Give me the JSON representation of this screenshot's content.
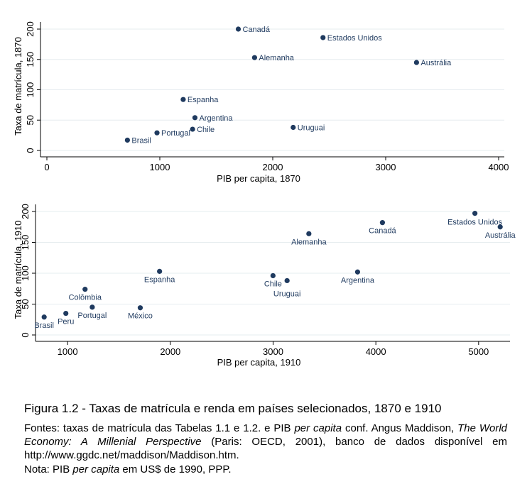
{
  "colors": {
    "marker": "#1f3a5f",
    "grid": "#e6ecef"
  },
  "chart_data": [
    {
      "type": "scatter",
      "xlabel": "PIB per capita, 1870",
      "ylabel": "Taxa de matrícula, 1870",
      "xlim": [
        0,
        4000
      ],
      "ylim": [
        0,
        200
      ],
      "xticks": [
        0,
        1000,
        2000,
        3000,
        4000
      ],
      "yticks": [
        0,
        50,
        100,
        150,
        200
      ],
      "grid": true,
      "points": [
        {
          "label": "Canadá",
          "x": 1695,
          "y": 200
        },
        {
          "label": "Estados Unidos",
          "x": 2445,
          "y": 186
        },
        {
          "label": "Alemanha",
          "x": 1839,
          "y": 153
        },
        {
          "label": "Austrália",
          "x": 3273,
          "y": 145
        },
        {
          "label": "Espanha",
          "x": 1207,
          "y": 84
        },
        {
          "label": "Argentina",
          "x": 1311,
          "y": 54
        },
        {
          "label": "Uruguai",
          "x": 2181,
          "y": 38
        },
        {
          "label": "Chile",
          "x": 1290,
          "y": 35
        },
        {
          "label": "Portugal",
          "x": 975,
          "y": 29
        },
        {
          "label": "Brasil",
          "x": 713,
          "y": 17
        }
      ]
    },
    {
      "type": "scatter",
      "xlabel": "PIB per capita, 1910",
      "ylabel": "Taxa de matrícula, 1910",
      "xlim": [
        750,
        5250
      ],
      "ylim": [
        0,
        200
      ],
      "xticks": [
        1000,
        2000,
        3000,
        4000,
        5000
      ],
      "yticks": [
        0,
        50,
        100,
        150,
        200
      ],
      "grid": true,
      "points": [
        {
          "label": "Estados Unidos",
          "x": 4964,
          "y": 197
        },
        {
          "label": "Canadá",
          "x": 4064,
          "y": 182
        },
        {
          "label": "Austrália",
          "x": 5210,
          "y": 175
        },
        {
          "label": "Alemanha",
          "x": 3348,
          "y": 164
        },
        {
          "label": "Espanha",
          "x": 1895,
          "y": 103
        },
        {
          "label": "Argentina",
          "x": 3822,
          "y": 102
        },
        {
          "label": "Chile",
          "x": 2999,
          "y": 96
        },
        {
          "label": "Uruguai",
          "x": 3136,
          "y": 88
        },
        {
          "label": "Colômbia",
          "x": 1170,
          "y": 74
        },
        {
          "label": "Portugal",
          "x": 1240,
          "y": 45
        },
        {
          "label": "México",
          "x": 1707,
          "y": 44
        },
        {
          "label": "Peru",
          "x": 983,
          "y": 35
        },
        {
          "label": "Brasil",
          "x": 772,
          "y": 29
        }
      ]
    }
  ],
  "caption": {
    "title": "Figura 1.2 - Taxas de matrícula e renda em países selecionados, 1870 e 1910",
    "sources_prefix": "Fontes: taxas de matrícula das Tabelas 1.1 e 1.2. e PIB ",
    "sources_italic_1": "per capita",
    "sources_mid": " conf. Angus Maddison, ",
    "sources_italic_2": "The World Economy: A Millenial Perspective",
    "sources_suffix": " (Paris: OECD, 2001), banco de dados disponível em http://www.ggdc.net/maddison/Maddison.htm.",
    "note_prefix": "Nota: PIB ",
    "note_italic": "per capita",
    "note_suffix": " em US$ de 1990, PPP."
  }
}
